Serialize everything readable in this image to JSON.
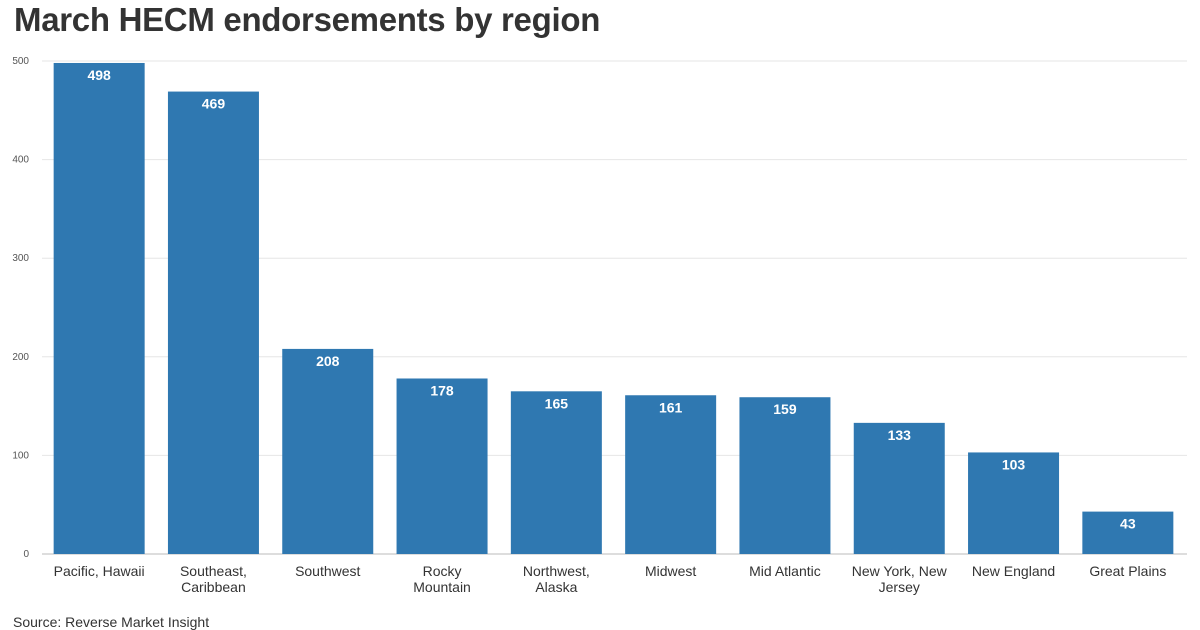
{
  "title": "March HECM endorsements by region",
  "source": "Source: Reverse Market Insight",
  "colors": {
    "bar": "#2f78b1",
    "value_label": "#ffffff",
    "text": "#333333",
    "grid": "#e6e6e6"
  },
  "chart_data": {
    "type": "bar",
    "title": "March HECM endorsements by region",
    "xlabel": "",
    "ylabel": "",
    "ylim": [
      0,
      500
    ],
    "yticks": [
      0,
      100,
      200,
      300,
      400,
      500
    ],
    "grid": true,
    "legend": "none",
    "categories": [
      [
        "Pacific, Hawaii"
      ],
      [
        "Southeast,",
        "Caribbean"
      ],
      [
        "Southwest"
      ],
      [
        "Rocky",
        "Mountain"
      ],
      [
        "Northwest,",
        "Alaska"
      ],
      [
        "Midwest"
      ],
      [
        "Mid Atlantic"
      ],
      [
        "New York, New",
        "Jersey"
      ],
      [
        "New England"
      ],
      [
        "Great Plains"
      ]
    ],
    "values": [
      498,
      469,
      208,
      178,
      165,
      161,
      159,
      133,
      103,
      43
    ]
  }
}
